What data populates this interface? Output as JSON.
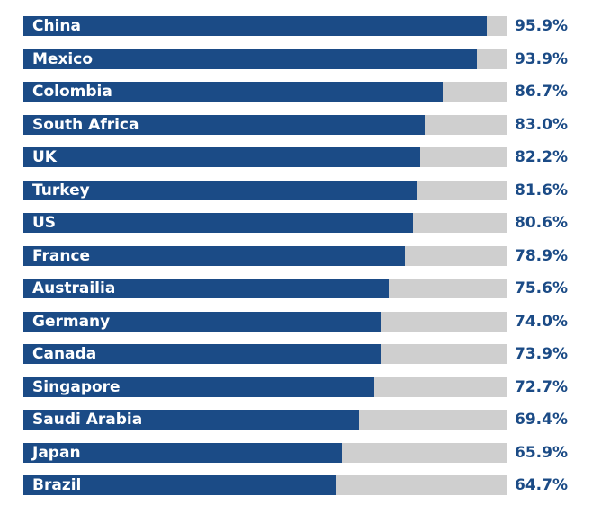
{
  "chart_data": {
    "type": "bar",
    "orientation": "horizontal",
    "title": "",
    "xlabel": "",
    "ylabel": "",
    "xlim": [
      0,
      100
    ],
    "categories": [
      "China",
      "Mexico",
      "Colombia",
      "South Africa",
      "UK",
      "Turkey",
      "US",
      "France",
      "Austrailia",
      "Germany",
      "Canada",
      "Singapore",
      "Saudi Arabia",
      "Japan",
      "Brazil"
    ],
    "values": [
      95.9,
      93.9,
      86.7,
      83.0,
      82.2,
      81.6,
      80.6,
      78.9,
      75.6,
      74.0,
      73.9,
      72.7,
      69.4,
      65.9,
      64.7
    ],
    "value_labels": [
      "95.9%",
      "93.9%",
      "86.7%",
      "83.0%",
      "82.2%",
      "81.6%",
      "80.6%",
      "78.9%",
      "75.6%",
      "74.0%",
      "73.9%",
      "72.7%",
      "69.4%",
      "65.9%",
      "64.7%"
    ],
    "colors": {
      "bar": "#1b4b86",
      "track": "#cfcfcf",
      "value_text": "#1b4b86",
      "label_text": "#ffffff"
    }
  }
}
